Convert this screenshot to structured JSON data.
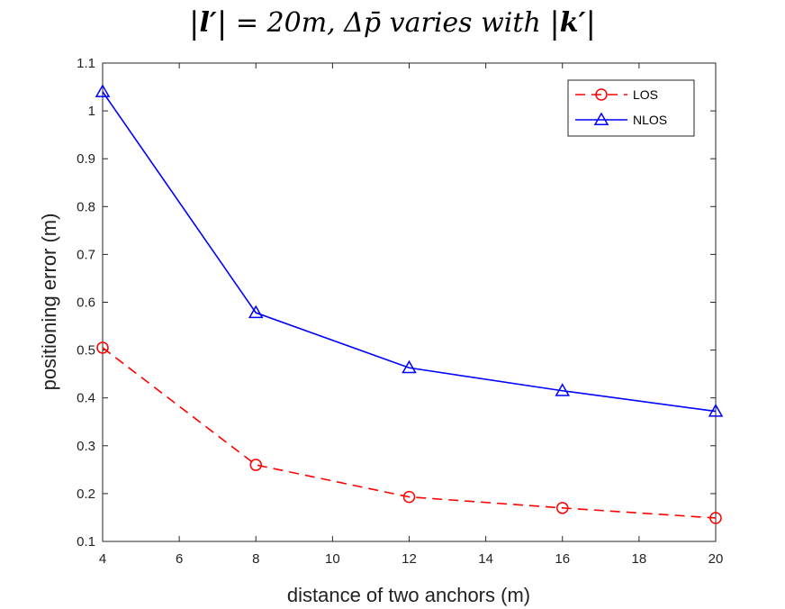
{
  "chart_data": {
    "type": "line",
    "title": {
      "l_symbol": "l′",
      "eq_value": "= 20m,",
      "delta_p": "Δp̄",
      "phrase": "varies with",
      "k_symbol": "k′"
    },
    "xlabel": "distance of two anchors (m)",
    "ylabel": "positioning error (m)",
    "xlim": [
      4,
      20
    ],
    "ylim": [
      0.1,
      1.1
    ],
    "xticks": [
      "4",
      "6",
      "8",
      "10",
      "12",
      "14",
      "16",
      "18",
      "20"
    ],
    "yticks": [
      "0.1",
      "0.2",
      "0.3",
      "0.4",
      "0.5",
      "0.6",
      "0.7",
      "0.8",
      "0.9",
      "1",
      "1.1"
    ],
    "x": [
      4,
      8,
      12,
      16,
      20
    ],
    "series": [
      {
        "name": "LOS",
        "values": [
          0.505,
          0.26,
          0.193,
          0.17,
          0.149
        ],
        "color": "#ff0000",
        "line": "dashed",
        "marker": "circle"
      },
      {
        "name": "NLOS",
        "values": [
          1.04,
          0.578,
          0.463,
          0.415,
          0.372
        ],
        "color": "#0000ff",
        "line": "solid",
        "marker": "triangle"
      }
    ],
    "legend_position": "top-right",
    "grid": false
  }
}
